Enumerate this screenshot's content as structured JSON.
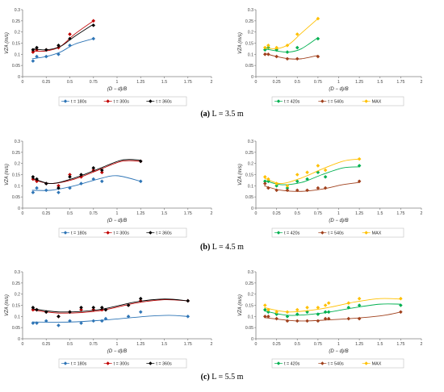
{
  "colors": {
    "t180": "#2e75b6",
    "t300": "#c00000",
    "t360": "#000000",
    "t420": "#00b050",
    "t540": "#a0401c",
    "max": "#ffc000",
    "axis": "#7f7f7f"
  },
  "axis_text": {
    "ylabel": "VZA (m/s)",
    "xlabel": "(D − d)/B",
    "xticks": [
      "0",
      "0.25",
      "0.5",
      "0.75",
      "1",
      "1.25",
      "1.5",
      "1.75",
      "2"
    ],
    "yticks": [
      "0",
      "0.05",
      "0.1",
      "0.15",
      "0.2",
      "0.25",
      "0.3"
    ]
  },
  "captions": [
    {
      "label": "(a)",
      "text": "L = 3.5 m"
    },
    {
      "label": "(b)",
      "text": "L = 4.5 m"
    },
    {
      "label": "(c)",
      "text": "L = 5.5 m"
    }
  ],
  "chart_data": [
    {
      "type": "scatter",
      "panel": "(a) left",
      "xlabel": "(D − d)/B",
      "ylabel": "VZA (m/s)",
      "xlim": [
        0,
        2
      ],
      "ylim": [
        0,
        0.3
      ],
      "grid": false,
      "legend": "bottom",
      "series": [
        {
          "name": "t = 180s",
          "color": "#2e75b6",
          "marker": "diamond",
          "x": [
            0.11,
            0.15,
            0.25,
            0.38,
            0.5,
            0.75
          ],
          "y": [
            0.07,
            0.09,
            0.09,
            0.1,
            0.14,
            0.17
          ],
          "trend": [
            [
              0.1,
              0.08
            ],
            [
              0.25,
              0.09
            ],
            [
              0.4,
              0.11
            ],
            [
              0.55,
              0.145
            ],
            [
              0.75,
              0.17
            ]
          ]
        },
        {
          "name": "t = 300s",
          "color": "#c00000",
          "marker": "diamond",
          "x": [
            0.11,
            0.15,
            0.25,
            0.38,
            0.5,
            0.75
          ],
          "y": [
            0.11,
            0.12,
            0.12,
            0.13,
            0.19,
            0.25
          ],
          "trend": [
            [
              0.1,
              0.115
            ],
            [
              0.25,
              0.115
            ],
            [
              0.4,
              0.135
            ],
            [
              0.55,
              0.19
            ],
            [
              0.75,
              0.25
            ]
          ]
        },
        {
          "name": "t = 360s",
          "color": "#000000",
          "marker": "diamond",
          "x": [
            0.11,
            0.15,
            0.25,
            0.38,
            0.5,
            0.75
          ],
          "y": [
            0.12,
            0.13,
            0.12,
            0.14,
            0.17,
            0.23
          ],
          "trend": [
            [
              0.1,
              0.125
            ],
            [
              0.25,
              0.12
            ],
            [
              0.4,
              0.135
            ],
            [
              0.55,
              0.18
            ],
            [
              0.75,
              0.235
            ]
          ]
        }
      ]
    },
    {
      "type": "scatter",
      "panel": "(a) right",
      "xlabel": "(D − d)/B",
      "ylabel": "VZA (m/s)",
      "xlim": [
        0,
        2
      ],
      "ylim": [
        0,
        0.3
      ],
      "grid": false,
      "legend": "bottom",
      "series": [
        {
          "name": "t = 420s",
          "color": "#00b050",
          "marker": "diamond",
          "x": [
            0.11,
            0.15,
            0.25,
            0.38,
            0.5,
            0.75
          ],
          "y": [
            0.12,
            0.13,
            0.12,
            0.11,
            0.13,
            0.17
          ],
          "trend": [
            [
              0.1,
              0.125
            ],
            [
              0.25,
              0.115
            ],
            [
              0.4,
              0.11
            ],
            [
              0.55,
              0.125
            ],
            [
              0.75,
              0.175
            ]
          ]
        },
        {
          "name": "t = 540s",
          "color": "#a0401c",
          "marker": "diamond",
          "x": [
            0.11,
            0.15,
            0.25,
            0.38,
            0.5,
            0.75
          ],
          "y": [
            0.1,
            0.1,
            0.09,
            0.08,
            0.08,
            0.09
          ],
          "trend": [
            [
              0.1,
              0.105
            ],
            [
              0.25,
              0.09
            ],
            [
              0.4,
              0.08
            ],
            [
              0.55,
              0.08
            ],
            [
              0.75,
              0.095
            ]
          ]
        },
        {
          "name": "MAX",
          "color": "#ffc000",
          "marker": "diamond",
          "x": [
            0.11,
            0.15,
            0.25,
            0.38,
            0.5,
            0.75
          ],
          "y": [
            0.13,
            0.14,
            0.13,
            0.14,
            0.19,
            0.26
          ],
          "trend": [
            [
              0.1,
              0.13
            ],
            [
              0.25,
              0.125
            ],
            [
              0.4,
              0.145
            ],
            [
              0.55,
              0.195
            ],
            [
              0.75,
              0.26
            ]
          ]
        }
      ]
    },
    {
      "type": "scatter",
      "panel": "(b) left",
      "xlabel": "(D − d)/B",
      "ylabel": "VZA (m/s)",
      "xlim": [
        0,
        2
      ],
      "ylim": [
        0,
        0.3
      ],
      "grid": false,
      "legend": "bottom",
      "series": [
        {
          "name": "t = 180s",
          "color": "#2e75b6",
          "marker": "diamond",
          "x": [
            0.11,
            0.15,
            0.25,
            0.38,
            0.5,
            0.62,
            0.75,
            0.84,
            1.25
          ],
          "y": [
            0.07,
            0.09,
            0.08,
            0.07,
            0.09,
            0.11,
            0.13,
            0.12,
            0.12
          ],
          "trend": [
            [
              0.1,
              0.08
            ],
            [
              0.3,
              0.08
            ],
            [
              0.55,
              0.1
            ],
            [
              0.8,
              0.13
            ],
            [
              1.0,
              0.145
            ],
            [
              1.25,
              0.12
            ]
          ]
        },
        {
          "name": "t = 300s",
          "color": "#c00000",
          "marker": "diamond",
          "x": [
            0.11,
            0.15,
            0.25,
            0.38,
            0.5,
            0.62,
            0.75,
            0.84,
            1.25
          ],
          "y": [
            0.13,
            0.12,
            0.11,
            0.1,
            0.15,
            0.14,
            0.17,
            0.16,
            0.21
          ],
          "trend": [
            [
              0.1,
              0.13
            ],
            [
              0.3,
              0.11
            ],
            [
              0.55,
              0.13
            ],
            [
              0.8,
              0.17
            ],
            [
              1.05,
              0.21
            ],
            [
              1.25,
              0.21
            ]
          ]
        },
        {
          "name": "t = 360s",
          "color": "#000000",
          "marker": "diamond",
          "x": [
            0.11,
            0.15,
            0.25,
            0.38,
            0.5,
            0.62,
            0.75,
            0.84,
            1.25
          ],
          "y": [
            0.14,
            0.13,
            0.11,
            0.09,
            0.14,
            0.15,
            0.18,
            0.17,
            0.21
          ],
          "trend": [
            [
              0.1,
              0.135
            ],
            [
              0.3,
              0.11
            ],
            [
              0.55,
              0.135
            ],
            [
              0.8,
              0.175
            ],
            [
              1.05,
              0.215
            ],
            [
              1.25,
              0.215
            ]
          ]
        }
      ]
    },
    {
      "type": "scatter",
      "panel": "(b) right",
      "xlabel": "(D − d)/B",
      "ylabel": "VZA (m/s)",
      "xlim": [
        0,
        2
      ],
      "ylim": [
        0,
        0.3
      ],
      "grid": false,
      "legend": "bottom",
      "series": [
        {
          "name": "t = 420s",
          "color": "#00b050",
          "marker": "diamond",
          "x": [
            0.11,
            0.15,
            0.25,
            0.38,
            0.5,
            0.62,
            0.75,
            0.84,
            1.25
          ],
          "y": [
            0.12,
            0.12,
            0.1,
            0.09,
            0.12,
            0.13,
            0.16,
            0.14,
            0.19
          ],
          "trend": [
            [
              0.1,
              0.125
            ],
            [
              0.3,
              0.105
            ],
            [
              0.55,
              0.115
            ],
            [
              0.8,
              0.15
            ],
            [
              1.05,
              0.18
            ],
            [
              1.25,
              0.185
            ]
          ]
        },
        {
          "name": "t = 540s",
          "color": "#a0401c",
          "marker": "diamond",
          "x": [
            0.11,
            0.15,
            0.25,
            0.38,
            0.5,
            0.62,
            0.75,
            0.84,
            1.25
          ],
          "y": [
            0.11,
            0.09,
            0.08,
            0.08,
            0.08,
            0.08,
            0.09,
            0.09,
            0.12
          ],
          "trend": [
            [
              0.1,
              0.1
            ],
            [
              0.3,
              0.08
            ],
            [
              0.55,
              0.075
            ],
            [
              0.8,
              0.085
            ],
            [
              1.05,
              0.105
            ],
            [
              1.25,
              0.115
            ]
          ]
        },
        {
          "name": "MAX",
          "color": "#ffc000",
          "marker": "diamond",
          "x": [
            0.11,
            0.15,
            0.25,
            0.38,
            0.5,
            0.62,
            0.75,
            0.84,
            1.25
          ],
          "y": [
            0.14,
            0.13,
            0.11,
            0.1,
            0.15,
            0.16,
            0.19,
            0.17,
            0.22
          ],
          "trend": [
            [
              0.1,
              0.135
            ],
            [
              0.3,
              0.11
            ],
            [
              0.55,
              0.135
            ],
            [
              0.8,
              0.175
            ],
            [
              1.05,
              0.21
            ],
            [
              1.25,
              0.22
            ]
          ]
        }
      ]
    },
    {
      "type": "scatter",
      "panel": "(c) left",
      "xlabel": "(D − d)/B",
      "ylabel": "VZA (m/s)",
      "xlim": [
        0,
        2
      ],
      "ylim": [
        0,
        0.3
      ],
      "grid": false,
      "legend": "bottom",
      "series": [
        {
          "name": "t = 180s",
          "color": "#2e75b6",
          "marker": "diamond",
          "x": [
            0.11,
            0.15,
            0.25,
            0.38,
            0.5,
            0.62,
            0.75,
            0.84,
            0.88,
            1.12,
            1.25,
            1.75
          ],
          "y": [
            0.07,
            0.07,
            0.08,
            0.06,
            0.08,
            0.07,
            0.08,
            0.08,
            0.09,
            0.1,
            0.12,
            0.1
          ],
          "trend": [
            [
              0.1,
              0.075
            ],
            [
              0.5,
              0.075
            ],
            [
              0.9,
              0.085
            ],
            [
              1.3,
              0.1
            ],
            [
              1.55,
              0.105
            ],
            [
              1.75,
              0.1
            ]
          ]
        },
        {
          "name": "t = 300s",
          "color": "#c00000",
          "marker": "diamond",
          "x": [
            0.11,
            0.15,
            0.25,
            0.38,
            0.5,
            0.62,
            0.75,
            0.84,
            0.88,
            1.12,
            1.25,
            1.75
          ],
          "y": [
            0.13,
            0.13,
            0.12,
            0.1,
            0.12,
            0.13,
            0.13,
            0.13,
            0.13,
            0.15,
            0.17,
            0.17
          ],
          "trend": [
            [
              0.1,
              0.13
            ],
            [
              0.4,
              0.115
            ],
            [
              0.8,
              0.125
            ],
            [
              1.2,
              0.16
            ],
            [
              1.5,
              0.175
            ],
            [
              1.75,
              0.17
            ]
          ]
        },
        {
          "name": "t = 360s",
          "color": "#000000",
          "marker": "diamond",
          "x": [
            0.11,
            0.15,
            0.25,
            0.38,
            0.5,
            0.62,
            0.75,
            0.84,
            0.88,
            1.12,
            1.25,
            1.75
          ],
          "y": [
            0.14,
            0.13,
            0.12,
            0.1,
            0.12,
            0.14,
            0.14,
            0.14,
            0.13,
            0.15,
            0.18,
            0.17
          ],
          "trend": [
            [
              0.1,
              0.135
            ],
            [
              0.4,
              0.12
            ],
            [
              0.8,
              0.13
            ],
            [
              1.2,
              0.165
            ],
            [
              1.5,
              0.178
            ],
            [
              1.75,
              0.17
            ]
          ]
        }
      ]
    },
    {
      "type": "scatter",
      "panel": "(c) right",
      "xlabel": "(D − d)/B",
      "ylabel": "VZA (m/s)",
      "xlim": [
        0,
        2
      ],
      "ylim": [
        0,
        0.3
      ],
      "grid": false,
      "legend": "bottom",
      "series": [
        {
          "name": "t = 420s",
          "color": "#00b050",
          "marker": "diamond",
          "x": [
            0.11,
            0.15,
            0.25,
            0.38,
            0.5,
            0.62,
            0.75,
            0.84,
            0.88,
            1.12,
            1.25,
            1.75
          ],
          "y": [
            0.13,
            0.12,
            0.11,
            0.1,
            0.11,
            0.12,
            0.11,
            0.12,
            0.12,
            0.14,
            0.15,
            0.15
          ],
          "trend": [
            [
              0.1,
              0.125
            ],
            [
              0.4,
              0.105
            ],
            [
              0.8,
              0.115
            ],
            [
              1.2,
              0.14
            ],
            [
              1.5,
              0.155
            ],
            [
              1.75,
              0.155
            ]
          ]
        },
        {
          "name": "t = 540s",
          "color": "#a0401c",
          "marker": "diamond",
          "x": [
            0.11,
            0.15,
            0.25,
            0.38,
            0.5,
            0.62,
            0.75,
            0.84,
            0.88,
            1.12,
            1.25,
            1.75
          ],
          "y": [
            0.1,
            0.1,
            0.09,
            0.08,
            0.08,
            0.08,
            0.08,
            0.09,
            0.09,
            0.09,
            0.09,
            0.12
          ],
          "trend": [
            [
              0.1,
              0.095
            ],
            [
              0.5,
              0.08
            ],
            [
              0.9,
              0.085
            ],
            [
              1.3,
              0.095
            ],
            [
              1.55,
              0.105
            ],
            [
              1.75,
              0.12
            ]
          ]
        },
        {
          "name": "MAX",
          "color": "#ffc000",
          "marker": "diamond",
          "x": [
            0.11,
            0.15,
            0.25,
            0.38,
            0.5,
            0.62,
            0.75,
            0.84,
            0.88,
            1.12,
            1.25,
            1.75
          ],
          "y": [
            0.15,
            0.13,
            0.12,
            0.12,
            0.13,
            0.14,
            0.14,
            0.15,
            0.16,
            0.16,
            0.18,
            0.18
          ],
          "trend": [
            [
              0.1,
              0.14
            ],
            [
              0.4,
              0.12
            ],
            [
              0.8,
              0.135
            ],
            [
              1.2,
              0.165
            ],
            [
              1.5,
              0.18
            ],
            [
              1.75,
              0.178
            ]
          ]
        }
      ]
    }
  ]
}
